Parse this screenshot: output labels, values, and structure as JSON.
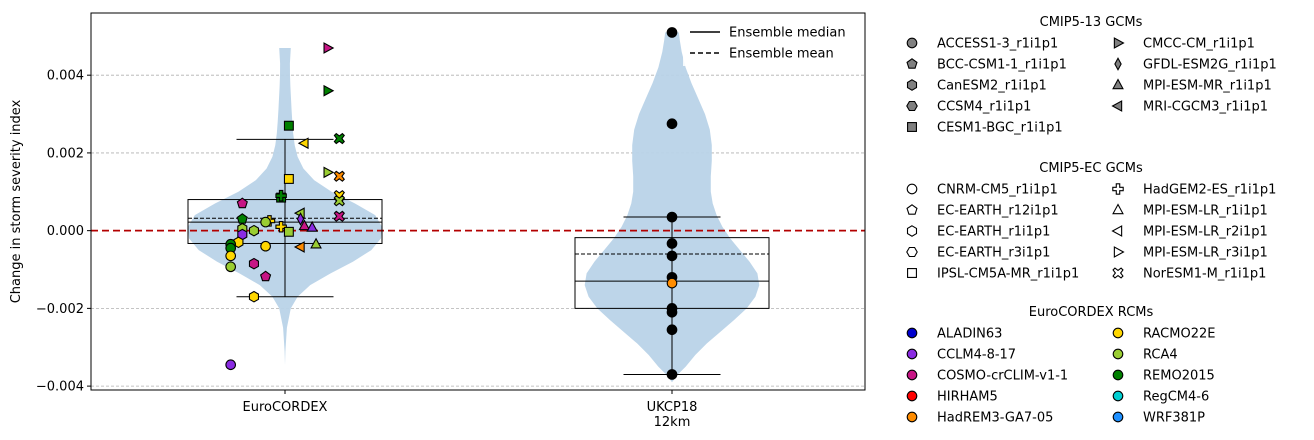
{
  "chart_data": {
    "type": "violin",
    "ylabel": "Change in storm severity index",
    "ylim": [
      -0.0041,
      0.0056
    ],
    "yticks": [
      {
        "value": -0.004,
        "label": "−0.004"
      },
      {
        "value": -0.002,
        "label": "−0.002"
      },
      {
        "value": 0.0,
        "label": "0.000"
      },
      {
        "value": 0.002,
        "label": "0.002"
      },
      {
        "value": 0.004,
        "label": "0.004"
      }
    ],
    "y_grid": true,
    "reference_line": {
      "y": 0.0,
      "color": "#b30000",
      "style": "dashed"
    },
    "categories": [
      {
        "key": "eurocordex",
        "label": "EuroCORDEX"
      },
      {
        "key": "ukcp18",
        "label": "UKCP18\n12km"
      }
    ],
    "violins": [
      {
        "category": "eurocordex",
        "color": "#b9d3e8",
        "shape": [
          [
            -0.00345,
            0.0
          ],
          [
            -0.0031,
            0.004
          ],
          [
            -0.0025,
            0.02
          ],
          [
            -0.002,
            0.06
          ],
          [
            -0.0017,
            0.13
          ],
          [
            -0.0014,
            0.26
          ],
          [
            -0.0011,
            0.47
          ],
          [
            -0.0008,
            0.7
          ],
          [
            -0.0005,
            0.89
          ],
          [
            -0.0002,
            0.99
          ],
          [
            0.0001,
            1.0
          ],
          [
            0.0004,
            0.93
          ],
          [
            0.0007,
            0.72
          ],
          [
            0.001,
            0.48
          ],
          [
            0.0013,
            0.3
          ],
          [
            0.0016,
            0.19
          ],
          [
            0.0019,
            0.13
          ],
          [
            0.0022,
            0.1
          ],
          [
            0.0025,
            0.085
          ],
          [
            0.0028,
            0.075
          ],
          [
            0.0031,
            0.068
          ],
          [
            0.0034,
            0.062
          ],
          [
            0.0037,
            0.056
          ],
          [
            0.004,
            0.052
          ],
          [
            0.0043,
            0.05
          ],
          [
            0.0047,
            0.06
          ]
        ],
        "max_width": 0.5,
        "whisker_low": -0.0017,
        "whisker_high": 0.00235,
        "q1": -0.00033,
        "q3": 0.0008,
        "median": 0.00022,
        "mean": 0.00032,
        "cap_half_width": 0.25,
        "box_half_width": 0.5
      },
      {
        "category": "ukcp18",
        "color": "#b9d3e8",
        "shape": [
          [
            -0.0039,
            0.0
          ],
          [
            -0.0037,
            0.06
          ],
          [
            -0.0035,
            0.14
          ],
          [
            -0.0032,
            0.24
          ],
          [
            -0.0029,
            0.36
          ],
          [
            -0.0026,
            0.5
          ],
          [
            -0.0023,
            0.64
          ],
          [
            -0.002,
            0.77
          ],
          [
            -0.0017,
            0.86
          ],
          [
            -0.0014,
            0.9
          ],
          [
            -0.0011,
            0.88
          ],
          [
            -0.0008,
            0.8
          ],
          [
            -0.0005,
            0.7
          ],
          [
            -0.0002,
            0.6
          ],
          [
            0.0001,
            0.52
          ],
          [
            0.0004,
            0.46
          ],
          [
            0.0007,
            0.42
          ],
          [
            0.001,
            0.4
          ],
          [
            0.0014,
            0.4
          ],
          [
            0.0018,
            0.41
          ],
          [
            0.0022,
            0.41
          ],
          [
            0.0026,
            0.39
          ],
          [
            0.003,
            0.34
          ],
          [
            0.0034,
            0.27
          ],
          [
            0.0038,
            0.2
          ],
          [
            0.0042,
            0.14
          ],
          [
            0.0046,
            0.1
          ],
          [
            0.0049,
            0.08
          ],
          [
            0.0051,
            0.07
          ]
        ],
        "max_width": 0.5,
        "whisker_low": -0.0037,
        "whisker_high": 0.00035,
        "q1": -0.002,
        "q3": -0.00018,
        "median": -0.0013,
        "mean": -0.0006,
        "cap_half_width": 0.25,
        "box_half_width": 0.5
      }
    ],
    "points": [
      {
        "cat": "eurocordex",
        "dx": 0.11,
        "y": 0.0047,
        "marker": "tri-right",
        "color": "#c71585"
      },
      {
        "cat": "eurocordex",
        "dx": 0.11,
        "y": 0.0036,
        "marker": "tri-right",
        "color": "#008000"
      },
      {
        "cat": "eurocordex",
        "dx": 0.01,
        "y": 0.0027,
        "marker": "square",
        "color": "#008000"
      },
      {
        "cat": "eurocordex",
        "dx": 0.14,
        "y": 0.00237,
        "marker": "x",
        "color": "#008000"
      },
      {
        "cat": "eurocordex",
        "dx": 0.05,
        "y": 0.00225,
        "marker": "tri-left",
        "color": "#ffd700"
      },
      {
        "cat": "eurocordex",
        "dx": 0.11,
        "y": 0.0015,
        "marker": "tri-right",
        "color": "#9acd32"
      },
      {
        "cat": "eurocordex",
        "dx": 0.14,
        "y": 0.0014,
        "marker": "x",
        "color": "#ff8c00"
      },
      {
        "cat": "eurocordex",
        "dx": 0.01,
        "y": 0.00133,
        "marker": "square",
        "color": "#ffd700"
      },
      {
        "cat": "eurocordex",
        "dx": 0.14,
        "y": 0.0009,
        "marker": "x",
        "color": "#ffd700"
      },
      {
        "cat": "eurocordex",
        "dx": -0.01,
        "y": 0.00085,
        "marker": "square",
        "color": "#008000"
      },
      {
        "cat": "eurocordex",
        "dx": -0.01,
        "y": 0.0009,
        "marker": "plus",
        "color": "#008000"
      },
      {
        "cat": "eurocordex",
        "dx": 0.14,
        "y": 0.00077,
        "marker": "x",
        "color": "#9acd32"
      },
      {
        "cat": "eurocordex",
        "dx": -0.11,
        "y": 0.0007,
        "marker": "pentagon",
        "color": "#c71585"
      },
      {
        "cat": "eurocordex",
        "dx": 0.04,
        "y": 0.00045,
        "marker": "tri-left",
        "color": "#9acd32"
      },
      {
        "cat": "eurocordex",
        "dx": 0.14,
        "y": 0.00037,
        "marker": "x",
        "color": "#c71585"
      },
      {
        "cat": "eurocordex",
        "dx": -0.11,
        "y": 0.0003,
        "marker": "pentagon",
        "color": "#008000"
      },
      {
        "cat": "eurocordex",
        "dx": 0.04,
        "y": 0.0003,
        "marker": "diamond",
        "color": "#8a2be2"
      },
      {
        "cat": "eurocordex",
        "dx": -0.04,
        "y": 0.00025,
        "marker": "plus",
        "color": "#ffd700"
      },
      {
        "cat": "eurocordex",
        "dx": -0.05,
        "y": 0.00022,
        "marker": "circle",
        "color": "#9acd32"
      },
      {
        "cat": "eurocordex",
        "dx": -0.01,
        "y": 0.0001,
        "marker": "plus",
        "color": "#ffd700"
      },
      {
        "cat": "eurocordex",
        "dx": 0.05,
        "y": 0.00012,
        "marker": "tri-up",
        "color": "#c71585"
      },
      {
        "cat": "eurocordex",
        "dx": 0.07,
        "y": 8e-05,
        "marker": "tri-up",
        "color": "#8a2be2"
      },
      {
        "cat": "eurocordex",
        "dx": -0.11,
        "y": 5e-05,
        "marker": "hexagon",
        "color": "#9acd32"
      },
      {
        "cat": "eurocordex",
        "dx": -0.08,
        "y": 0.0,
        "marker": "hexagon",
        "color": "#9acd32"
      },
      {
        "cat": "eurocordex",
        "dx": 0.01,
        "y": -3e-05,
        "marker": "square",
        "color": "#9acd32"
      },
      {
        "cat": "eurocordex",
        "dx": -0.11,
        "y": -0.0001,
        "marker": "hexagon",
        "color": "#8a2be2"
      },
      {
        "cat": "eurocordex",
        "dx": -0.12,
        "y": -0.0003,
        "marker": "hexagon",
        "color": "#ffd700"
      },
      {
        "cat": "eurocordex",
        "dx": -0.14,
        "y": -0.00035,
        "marker": "circle",
        "color": "#008000"
      },
      {
        "cat": "eurocordex",
        "dx": 0.08,
        "y": -0.00035,
        "marker": "tri-up",
        "color": "#9acd32"
      },
      {
        "cat": "eurocordex",
        "dx": -0.05,
        "y": -0.0004,
        "marker": "circle",
        "color": "#ffd700"
      },
      {
        "cat": "eurocordex",
        "dx": 0.04,
        "y": -0.00042,
        "marker": "tri-left",
        "color": "#ff8c00"
      },
      {
        "cat": "eurocordex",
        "dx": -0.14,
        "y": -0.00045,
        "marker": "circle",
        "color": "#008000"
      },
      {
        "cat": "eurocordex",
        "dx": -0.14,
        "y": -0.00065,
        "marker": "circle",
        "color": "#ffd700"
      },
      {
        "cat": "eurocordex",
        "dx": -0.08,
        "y": -0.00085,
        "marker": "hexagon",
        "color": "#c71585"
      },
      {
        "cat": "eurocordex",
        "dx": -0.14,
        "y": -0.00093,
        "marker": "circle",
        "color": "#9acd32"
      },
      {
        "cat": "eurocordex",
        "dx": -0.05,
        "y": -0.00118,
        "marker": "pentagon",
        "color": "#c71585"
      },
      {
        "cat": "eurocordex",
        "dx": -0.08,
        "y": -0.0017,
        "marker": "hexagon",
        "color": "#ffd700"
      },
      {
        "cat": "eurocordex",
        "dx": -0.14,
        "y": -0.00345,
        "marker": "circle",
        "color": "#8a2be2"
      },
      {
        "cat": "ukcp18",
        "dx": 0.0,
        "y": 0.0051,
        "marker": "circle",
        "color": "#000000"
      },
      {
        "cat": "ukcp18",
        "dx": 0.0,
        "y": 0.00275,
        "marker": "circle",
        "color": "#000000"
      },
      {
        "cat": "ukcp18",
        "dx": 0.0,
        "y": 0.00035,
        "marker": "circle",
        "color": "#000000"
      },
      {
        "cat": "ukcp18",
        "dx": 0.0,
        "y": -0.00033,
        "marker": "circle",
        "color": "#000000"
      },
      {
        "cat": "ukcp18",
        "dx": 0.0,
        "y": -0.00065,
        "marker": "circle",
        "color": "#000000"
      },
      {
        "cat": "ukcp18",
        "dx": 0.0,
        "y": -0.0012,
        "marker": "circle",
        "color": "#000000"
      },
      {
        "cat": "ukcp18",
        "dx": 0.0,
        "y": -0.00135,
        "marker": "circle",
        "color": "#ff8c00"
      },
      {
        "cat": "ukcp18",
        "dx": 0.0,
        "y": -0.002,
        "marker": "circle",
        "color": "#000000"
      },
      {
        "cat": "ukcp18",
        "dx": 0.0,
        "y": -0.0021,
        "marker": "circle",
        "color": "#000000"
      },
      {
        "cat": "ukcp18",
        "dx": 0.0,
        "y": -0.00255,
        "marker": "circle",
        "color": "#000000"
      },
      {
        "cat": "ukcp18",
        "dx": 0.0,
        "y": -0.0037,
        "marker": "circle",
        "color": "#000000"
      }
    ],
    "inline_legend": {
      "placement": "top-right",
      "entries": [
        {
          "label": "Ensemble median",
          "style": "solid"
        },
        {
          "label": "Ensemble mean",
          "style": "dashed"
        }
      ]
    },
    "side_legend": [
      {
        "title": "CMIP5-13 GCMs",
        "columns": [
          [
            {
              "label": "ACCESS1-3_r1i1p1",
              "marker": "circle",
              "fill": "#808080"
            },
            {
              "label": "BCC-CSM1-1_r1i1p1",
              "marker": "pentagon",
              "fill": "#808080"
            },
            {
              "label": "CanESM2_r1i1p1",
              "marker": "hexagon",
              "fill": "#808080"
            },
            {
              "label": "CCSM4_r1i1p1",
              "marker": "hexagon2",
              "fill": "#808080"
            },
            {
              "label": "CESM1-BGC_r1i1p1",
              "marker": "square",
              "fill": "#808080"
            }
          ],
          [
            {
              "label": "CMCC-CM_r1i1p1",
              "marker": "tri-right",
              "fill": "#808080"
            },
            {
              "label": "GFDL-ESM2G_r1i1p1",
              "marker": "diamond",
              "fill": "#808080"
            },
            {
              "label": "MPI-ESM-MR_r1i1p1",
              "marker": "tri-up",
              "fill": "#808080"
            },
            {
              "label": "MRI-CGCM3_r1i1p1",
              "marker": "tri-left",
              "fill": "#808080"
            }
          ]
        ]
      },
      {
        "title": "CMIP5-EC GCMs",
        "columns": [
          [
            {
              "label": "CNRM-CM5_r1i1p1",
              "marker": "circle",
              "fill": "#ffffff"
            },
            {
              "label": "EC-EARTH_r12i1p1",
              "marker": "pentagon",
              "fill": "#ffffff"
            },
            {
              "label": "EC-EARTH_r1i1p1",
              "marker": "hexagon",
              "fill": "#ffffff"
            },
            {
              "label": "EC-EARTH_r3i1p1",
              "marker": "hexagon2",
              "fill": "#ffffff"
            },
            {
              "label": "IPSL-CM5A-MR_r1i1p1",
              "marker": "square",
              "fill": "#ffffff"
            }
          ],
          [
            {
              "label": "HadGEM2-ES_r1i1p1",
              "marker": "plus",
              "fill": "#ffffff"
            },
            {
              "label": "MPI-ESM-LR_r1i1p1",
              "marker": "tri-up",
              "fill": "#ffffff"
            },
            {
              "label": "MPI-ESM-LR_r2i1p1",
              "marker": "tri-left",
              "fill": "#ffffff"
            },
            {
              "label": "MPI-ESM-LR_r3i1p1",
              "marker": "tri-right",
              "fill": "#ffffff"
            },
            {
              "label": "NorESM1-M_r1i1p1",
              "marker": "x",
              "fill": "#ffffff"
            }
          ]
        ]
      },
      {
        "title": "EuroCORDEX RCMs",
        "columns": [
          [
            {
              "label": "ALADIN63",
              "marker": "circle",
              "fill": "#0000cd"
            },
            {
              "label": "CCLM4-8-17",
              "marker": "circle",
              "fill": "#8a2be2"
            },
            {
              "label": "COSMO-crCLIM-v1-1",
              "marker": "circle",
              "fill": "#c71585"
            },
            {
              "label": "HIRHAM5",
              "marker": "circle",
              "fill": "#ff0000"
            },
            {
              "label": "HadREM3-GA7-05",
              "marker": "circle",
              "fill": "#ff8c00"
            }
          ],
          [
            {
              "label": "RACMO22E",
              "marker": "circle",
              "fill": "#ffd700"
            },
            {
              "label": "RCA4",
              "marker": "circle",
              "fill": "#9acd32"
            },
            {
              "label": "REMO2015",
              "marker": "circle",
              "fill": "#008000"
            },
            {
              "label": "RegCM4-6",
              "marker": "circle",
              "fill": "#00ced1"
            },
            {
              "label": "WRF381P",
              "marker": "circle",
              "fill": "#1e90ff"
            }
          ]
        ]
      }
    ]
  }
}
